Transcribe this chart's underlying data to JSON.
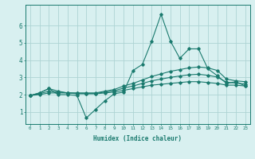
{
  "x": [
    0,
    1,
    2,
    3,
    4,
    5,
    6,
    7,
    8,
    9,
    10,
    11,
    12,
    13,
    14,
    15,
    16,
    17,
    18,
    19,
    20,
    21,
    22,
    23
  ],
  "line_main": [
    1.95,
    2.1,
    2.35,
    2.0,
    2.0,
    1.95,
    0.65,
    1.15,
    1.65,
    2.05,
    2.15,
    3.4,
    3.75,
    5.1,
    6.65,
    5.1,
    4.1,
    4.65,
    4.65,
    3.5,
    3.1,
    2.65,
    2.75,
    2.5
  ],
  "line_upper": [
    1.95,
    2.1,
    2.35,
    2.2,
    2.1,
    2.1,
    2.1,
    2.1,
    2.2,
    2.3,
    2.5,
    2.65,
    2.85,
    3.05,
    3.2,
    3.35,
    3.45,
    3.55,
    3.6,
    3.55,
    3.4,
    2.9,
    2.8,
    2.75
  ],
  "line_lower": [
    1.95,
    2.0,
    2.1,
    2.1,
    2.1,
    2.05,
    2.05,
    2.05,
    2.1,
    2.15,
    2.25,
    2.35,
    2.45,
    2.55,
    2.6,
    2.65,
    2.7,
    2.75,
    2.75,
    2.7,
    2.65,
    2.55,
    2.55,
    2.5
  ],
  "line_middle": [
    1.95,
    2.05,
    2.2,
    2.15,
    2.1,
    2.08,
    2.07,
    2.07,
    2.15,
    2.22,
    2.38,
    2.5,
    2.65,
    2.8,
    2.9,
    3.0,
    3.08,
    3.15,
    3.18,
    3.12,
    3.02,
    2.72,
    2.67,
    2.62
  ],
  "color": "#1a7a6e",
  "bg_color": "#d8f0f0",
  "grid_color": "#aed4d4",
  "xlabel": "Humidex (Indice chaleur)",
  "ylim": [
    0.3,
    7.2
  ],
  "xlim": [
    -0.5,
    23.5
  ],
  "yticks": [
    1,
    2,
    3,
    4,
    5,
    6
  ],
  "xticks": [
    0,
    1,
    2,
    3,
    4,
    5,
    6,
    7,
    8,
    9,
    10,
    11,
    12,
    13,
    14,
    15,
    16,
    17,
    18,
    19,
    20,
    21,
    22,
    23
  ]
}
